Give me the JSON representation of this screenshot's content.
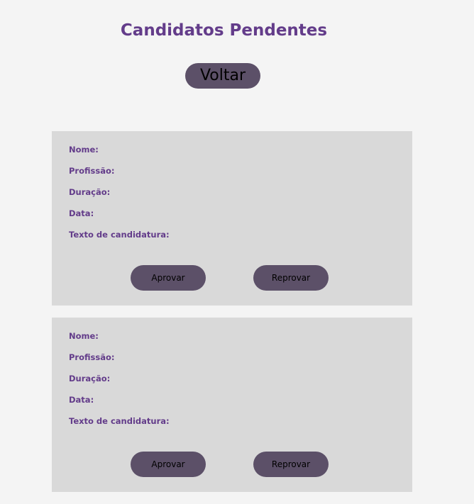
{
  "header": {
    "title": "Candidatos Pendentes",
    "back_label": "Voltar"
  },
  "card_labels": {
    "name": "Nome:",
    "profession": "Profissão:",
    "duration": "Duração:",
    "date": "Data:",
    "application_text": "Texto de candidatura:"
  },
  "actions": {
    "approve_label": "Aprovar",
    "reject_label": "Reprovar"
  },
  "cards": [
    {
      "name": "",
      "profession": "",
      "duration": "",
      "date": "",
      "application_text": ""
    },
    {
      "name": "",
      "profession": "",
      "duration": "",
      "date": "",
      "application_text": ""
    }
  ],
  "colors": {
    "background": "#f4f4f4",
    "title": "#633c8a",
    "button": "#5c5068",
    "card": "#d9d9d9"
  }
}
